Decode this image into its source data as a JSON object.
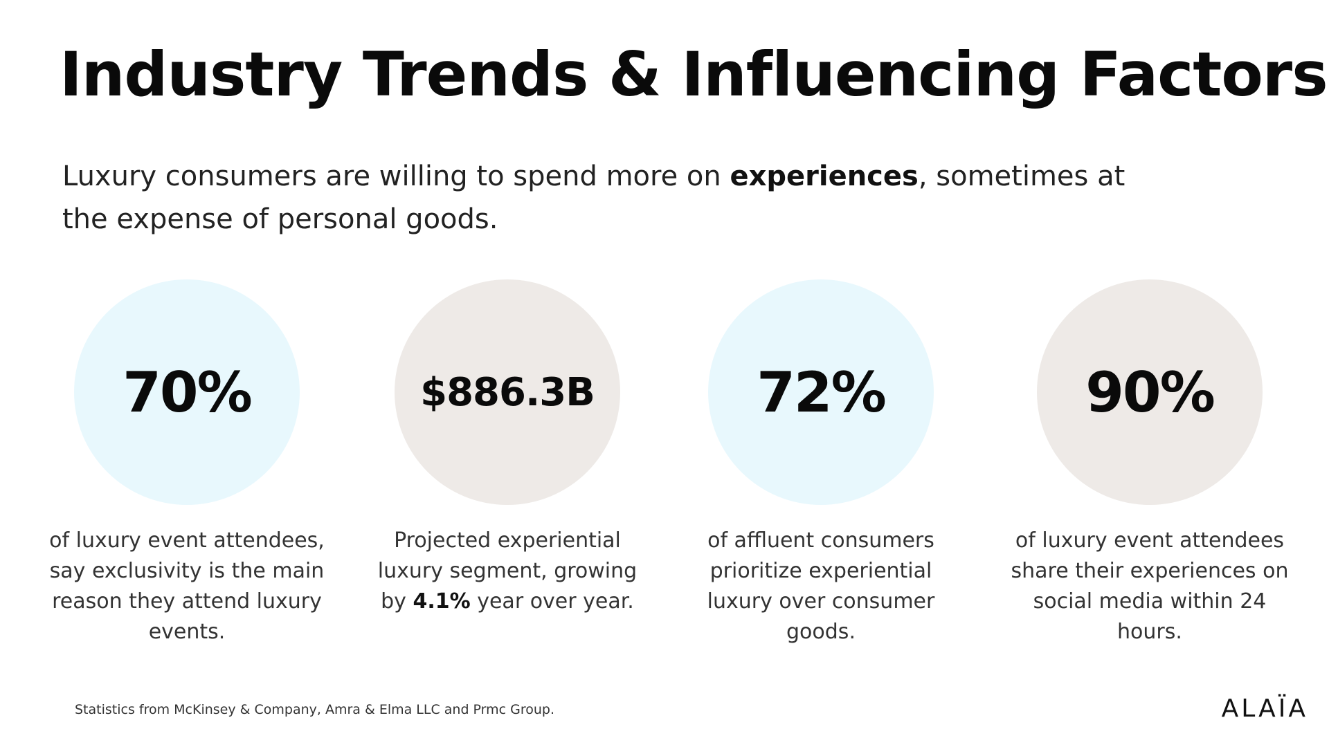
{
  "slide": {
    "title": "Industry Trends & Influencing Factors",
    "subtitle_pre": "Luxury consumers are willing to spend more on ",
    "subtitle_bold": "experiences",
    "subtitle_post": ", sometimes at the expense of personal goods."
  },
  "stats": [
    {
      "value": "70%",
      "desc": "of luxury event attendees, say exclusivity is the main reason they attend luxury events.",
      "circle_color": "#e8f8fd"
    },
    {
      "value": "$886.3B",
      "desc_pre": "Projected experiential luxury segment, growing by ",
      "desc_bold": "4.1%",
      "desc_post": " year over year.",
      "circle_color": "#eeeae7"
    },
    {
      "value": "72%",
      "desc": "of affluent consumers prioritize experiential luxury over consumer goods.",
      "circle_color": "#e8f8fd"
    },
    {
      "value": "90%",
      "desc": "of luxury event attendees share their experiences on social media within 24 hours.",
      "circle_color": "#eeeae7"
    }
  ],
  "footer": {
    "source": "Statistics from McKinsey & Company, Amra & Elma LLC and Prmc Group.",
    "logo": "ALAÏA"
  }
}
